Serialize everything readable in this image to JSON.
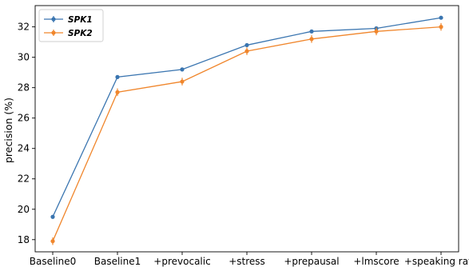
{
  "chart_data": {
    "type": "line",
    "title": "",
    "xlabel": "",
    "ylabel": "precision (%)",
    "categories": [
      "Baseline0",
      "Baseline1",
      "+prevocalic",
      "+stress",
      "+prepausal",
      "+lmscore",
      "+speaking rate"
    ],
    "ylim": [
      17.2,
      33.4
    ],
    "yticks": [
      18,
      20,
      22,
      24,
      26,
      28,
      30,
      32
    ],
    "grid": false,
    "legend_position": "top-left",
    "error_bars": true,
    "series": [
      {
        "name": "SPK1",
        "color": "#3a75b0",
        "values": [
          19.5,
          28.7,
          29.2,
          30.8,
          31.7,
          31.9,
          32.6
        ],
        "errors": [
          0.12,
          0.12,
          0.12,
          0.12,
          0.12,
          0.12,
          0.12
        ]
      },
      {
        "name": "SPK2",
        "color": "#f0862c",
        "values": [
          17.9,
          27.7,
          28.4,
          30.4,
          31.2,
          31.7,
          32.0
        ],
        "errors": [
          0.25,
          0.25,
          0.25,
          0.25,
          0.25,
          0.25,
          0.25
        ]
      }
    ]
  }
}
